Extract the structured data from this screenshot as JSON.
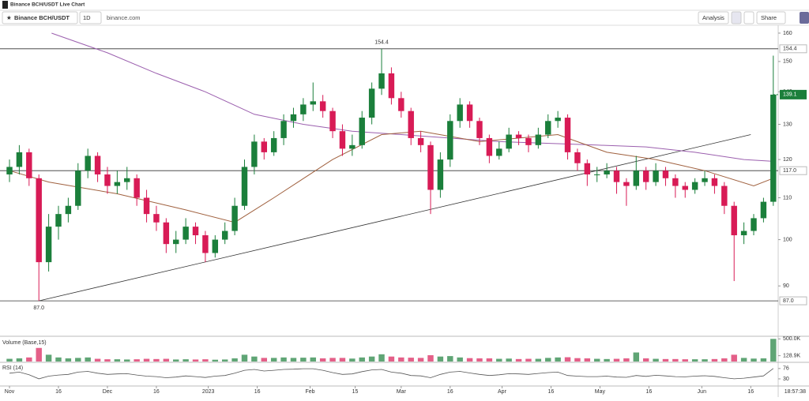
{
  "header": {
    "title": "Binance BCH/USDT Live Chart"
  },
  "toolbar": {
    "symbol": "Binance BCH/USDT",
    "interval": "1D",
    "source": "binance.com",
    "analysis": "Analysis",
    "share": "Share"
  },
  "chart_data": {
    "type": "candlestick",
    "up_color": "#1b7f3b",
    "down_color": "#d81b56",
    "log_scale": true,
    "open": [
      116,
      118,
      122,
      115,
      95,
      103,
      106,
      108,
      117,
      121,
      116,
      113,
      114,
      115,
      110,
      106,
      104,
      99,
      100,
      103,
      101,
      97,
      100,
      102,
      108,
      118,
      125,
      122,
      126,
      131,
      133,
      136,
      137,
      134,
      128,
      123,
      124,
      132,
      141,
      146,
      138,
      134,
      126,
      124,
      112,
      120,
      131,
      136,
      131,
      126,
      121,
      123,
      127,
      126,
      124,
      127,
      131,
      132,
      122,
      119,
      116,
      116,
      117,
      114,
      113,
      117,
      114,
      117,
      115,
      113,
      112,
      114,
      115,
      113,
      108,
      101,
      102,
      105,
      109
    ],
    "high": [
      120,
      124,
      123,
      116,
      106,
      108,
      110,
      119,
      123,
      122,
      118,
      117,
      118,
      116,
      112,
      108,
      105,
      102,
      105,
      104,
      102,
      101,
      104,
      110,
      120,
      127,
      126,
      128,
      133,
      135,
      138,
      143,
      139,
      135,
      130,
      127,
      134,
      143,
      154.4,
      148,
      140,
      135,
      128,
      125,
      122,
      133,
      138,
      137,
      132,
      127,
      125,
      129,
      128,
      127,
      129,
      133,
      134,
      133,
      123,
      120,
      118,
      119,
      118,
      115,
      121,
      118,
      119,
      118,
      116,
      114,
      115,
      117,
      116,
      114,
      109,
      104,
      106,
      110,
      152
    ],
    "low": [
      114,
      116,
      113,
      87,
      93,
      100,
      104,
      107,
      115,
      114,
      111,
      111,
      112,
      108,
      104,
      102,
      97,
      97,
      99,
      99,
      95,
      96,
      99,
      101,
      107,
      116,
      120,
      121,
      124,
      129,
      131,
      134,
      132,
      126,
      121,
      121,
      123,
      130,
      139,
      136,
      132,
      124,
      122,
      106,
      110,
      118,
      129,
      129,
      124,
      119,
      120,
      122,
      124,
      122,
      123,
      126,
      129,
      120,
      117,
      113,
      114,
      115,
      111,
      108,
      112,
      112,
      113,
      113,
      110,
      110,
      111,
      113,
      111,
      106,
      91,
      99,
      101,
      104,
      108
    ],
    "close": [
      118,
      122,
      115,
      95,
      103,
      106,
      108,
      117,
      121,
      116,
      113,
      114,
      115,
      110,
      106,
      104,
      99,
      100,
      103,
      101,
      97,
      100,
      102,
      108,
      118,
      125,
      122,
      126,
      131,
      133,
      136,
      137,
      134,
      128,
      123,
      124,
      132,
      141,
      146,
      138,
      134,
      126,
      124,
      112,
      120,
      131,
      136,
      131,
      126,
      121,
      123,
      127,
      126,
      124,
      127,
      131,
      132,
      122,
      119,
      116,
      116,
      117,
      114,
      113,
      117,
      114,
      117,
      115,
      113,
      112,
      114,
      115,
      113,
      108,
      101,
      102,
      105,
      109,
      139.1
    ],
    "xlim": [
      -0.97,
      78.5
    ],
    "xticks": [
      {
        "value": 0,
        "label": "Nov"
      },
      {
        "value": 5,
        "label": "16"
      },
      {
        "value": 10,
        "label": "Dec"
      },
      {
        "value": 15,
        "label": "16"
      },
      {
        "value": 20.3,
        "label": "2023"
      },
      {
        "value": 25.3,
        "label": "16"
      },
      {
        "value": 30.7,
        "label": "Feb"
      },
      {
        "value": 35.3,
        "label": "15"
      },
      {
        "value": 40,
        "label": "Mar"
      },
      {
        "value": 45,
        "label": "16"
      },
      {
        "value": 50.3,
        "label": "Apr"
      },
      {
        "value": 55.3,
        "label": "16"
      },
      {
        "value": 60.3,
        "label": "May"
      },
      {
        "value": 65.3,
        "label": "16"
      },
      {
        "value": 70.7,
        "label": "Jun"
      },
      {
        "value": 75.7,
        "label": "16"
      }
    ],
    "ylim": [
      80.4,
      162.6
    ],
    "yticks": [
      90,
      100,
      110,
      120,
      130,
      140,
      150,
      160
    ],
    "price_lines": [
      154.4,
      {
        "value": 117,
        "label": "117.0"
      },
      {
        "value": 87,
        "label": "87.0"
      }
    ],
    "last_price": 139.1,
    "high_annotation": 154.4,
    "low_annotation": {
      "value": 87,
      "label": "87.0"
    },
    "trendline": {
      "x": [
        3,
        75.7
      ],
      "values": [
        87,
        127
      ]
    },
    "moving_averages": [
      {
        "color": "#9b5fae",
        "x": [
          4.3,
          10,
          15,
          20,
          25,
          30,
          35,
          40,
          50,
          60,
          65,
          70,
          75,
          78
        ],
        "values": [
          160,
          153,
          146,
          140,
          133,
          130,
          128,
          127,
          125,
          124,
          123.5,
          122,
          120,
          119.5
        ]
      },
      {
        "color": "#a0613f",
        "x": [
          0,
          4,
          11,
          18,
          23,
          27,
          33,
          38,
          42,
          48,
          56,
          61,
          66,
          71,
          76,
          78
        ],
        "values": [
          117,
          114,
          111,
          107,
          104,
          110,
          120,
          127,
          128,
          125,
          127,
          122,
          120,
          117,
          113,
          115
        ]
      }
    ],
    "volume": {
      "title": "Volume (Base,15)",
      "values": [
        60000,
        70000,
        90000,
        300000,
        150000,
        90000,
        70000,
        80000,
        90000,
        60000,
        50000,
        50000,
        45000,
        50000,
        60000,
        55000,
        60000,
        45000,
        50000,
        45000,
        50000,
        40000,
        45000,
        70000,
        150000,
        110000,
        80000,
        80000,
        90000,
        80000,
        85000,
        90000,
        70000,
        80000,
        80000,
        65000,
        90000,
        110000,
        160000,
        110000,
        90000,
        85000,
        80000,
        140000,
        110000,
        120000,
        90000,
        75000,
        70000,
        70000,
        60000,
        65000,
        55000,
        60000,
        60000,
        80000,
        90000,
        95000,
        75000,
        70000,
        60000,
        55000,
        60000,
        70000,
        200000,
        70000,
        60000,
        55000,
        55000,
        50000,
        50000,
        50000,
        55000,
        70000,
        150000,
        80000,
        65000,
        70000,
        500000
      ],
      "ylim": [
        0,
        540000
      ],
      "yticks": [
        {
          "value": 500000,
          "label": "500.0K"
        },
        {
          "value": 128900,
          "label": "128.9K"
        }
      ]
    },
    "rsi": {
      "title": "RSI (14)",
      "color": "#555555",
      "values": [
        55,
        60,
        48,
        30,
        42,
        47,
        50,
        60,
        63,
        55,
        50,
        52,
        53,
        47,
        42,
        40,
        35,
        38,
        43,
        40,
        36,
        42,
        45,
        55,
        68,
        72,
        65,
        68,
        72,
        73,
        75,
        75,
        68,
        58,
        50,
        52,
        62,
        70,
        72,
        60,
        55,
        45,
        43,
        35,
        50,
        60,
        63,
        56,
        50,
        45,
        48,
        53,
        52,
        50,
        54,
        58,
        60,
        45,
        42,
        40,
        40,
        42,
        38,
        37,
        45,
        41,
        46,
        43,
        40,
        39,
        42,
        44,
        41,
        35,
        30,
        33,
        38,
        43,
        76
      ],
      "ylim": [
        0,
        100
      ],
      "yticks": [
        76,
        30
      ]
    },
    "time": "18:57:38"
  }
}
